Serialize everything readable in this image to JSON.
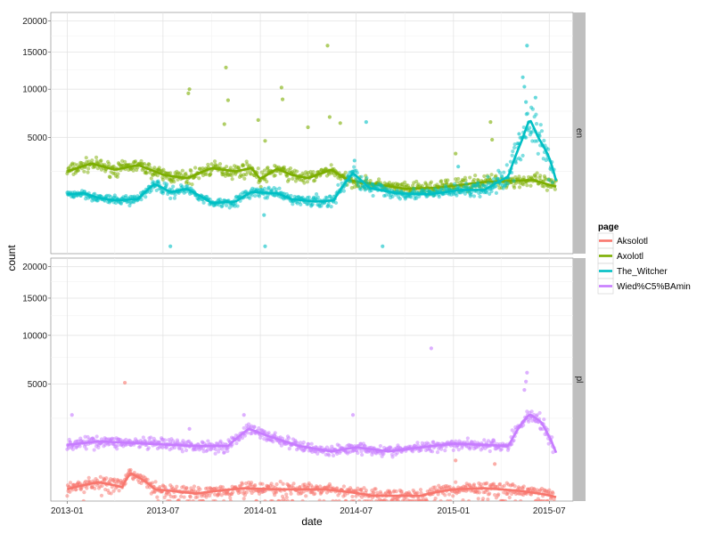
{
  "chart_data": {
    "type": "scatter",
    "title": "",
    "xlabel": "date",
    "ylabel": "count",
    "x_ticks": [
      "2013-01",
      "2013-07",
      "2014-01",
      "2014-07",
      "2015-01",
      "2015-07"
    ],
    "x_range": [
      "2012-12-01",
      "2015-08-15"
    ],
    "y_ticks": [
      5000,
      10000,
      15000,
      20000
    ],
    "y_tick_labels": [
      "5000",
      "10000",
      "15000",
      "20000"
    ],
    "y_scale": "sqrt",
    "ylim": [
      0,
      21500
    ],
    "grid": true,
    "legend": {
      "title": "page",
      "placement": "right",
      "entries": [
        {
          "name": "Aksolotl",
          "color": "#F8766D"
        },
        {
          "name": "Axolotl",
          "color": "#7CAE00"
        },
        {
          "name": "The_Witcher",
          "color": "#00BFC4"
        },
        {
          "name": "Wied%C5%BAmin",
          "color": "#C77CFF"
        }
      ]
    },
    "facets": [
      {
        "label": "en",
        "series": [
          {
            "name": "Axolotl",
            "color": "#7CAE00",
            "trend": [
              [
                "2013-01-01",
                2500
              ],
              [
                "2013-02-15",
                3000
              ],
              [
                "2013-04-01",
                2600
              ],
              [
                "2013-05-15",
                2900
              ],
              [
                "2013-07-01",
                2300
              ],
              [
                "2013-08-15",
                2100
              ],
              [
                "2013-10-01",
                2700
              ],
              [
                "2013-11-15",
                2500
              ],
              [
                "2013-12-15",
                2700
              ],
              [
                "2014-01-01",
                2050
              ],
              [
                "2014-02-01",
                2650
              ],
              [
                "2014-03-01",
                2300
              ],
              [
                "2014-04-01",
                2100
              ],
              [
                "2014-05-15",
                2600
              ],
              [
                "2014-06-15",
                2000
              ],
              [
                "2014-08-01",
                1800
              ],
              [
                "2014-10-01",
                1550
              ],
              [
                "2014-12-01",
                1600
              ],
              [
                "2015-01-15",
                1750
              ],
              [
                "2015-03-01",
                1900
              ],
              [
                "2015-04-15",
                1950
              ],
              [
                "2015-06-01",
                2000
              ],
              [
                "2015-06-25",
                1800
              ],
              [
                "2015-07-15",
                1650
              ]
            ],
            "baseline_points": [
              [
                "2013-01-01",
                2500,
                2000,
                3500
              ],
              [
                "2013-04-01",
                2600,
                2000,
                3300
              ],
              [
                "2013-07-01",
                2300,
                1700,
                3000
              ],
              [
                "2013-10-01",
                2700,
                1900,
                3300
              ],
              [
                "2014-01-01",
                2050,
                1700,
                3100
              ],
              [
                "2014-04-01",
                2100,
                1600,
                2800
              ],
              [
                "2014-07-01",
                1800,
                1400,
                2400
              ],
              [
                "2014-10-01",
                1550,
                1200,
                2100
              ],
              [
                "2015-01-01",
                1700,
                1200,
                2500
              ],
              [
                "2015-04-01",
                1950,
                1500,
                2600
              ],
              [
                "2015-07-15",
                1650,
                1000,
                2300
              ]
            ],
            "outliers": [
              [
                "2013-08-20",
                10000
              ],
              [
                "2013-08-18",
                9500
              ],
              [
                "2013-10-28",
                12800
              ],
              [
                "2013-11-01",
                8700
              ],
              [
                "2013-10-25",
                6200
              ],
              [
                "2013-12-28",
                6600
              ],
              [
                "2014-01-10",
                4700
              ],
              [
                "2014-02-10",
                10200
              ],
              [
                "2014-02-12",
                8800
              ],
              [
                "2014-04-01",
                5900
              ],
              [
                "2014-05-08",
                16000
              ],
              [
                "2014-05-12",
                6900
              ],
              [
                "2014-06-01",
                6300
              ],
              [
                "2015-03-12",
                6400
              ],
              [
                "2015-03-15",
                4800
              ],
              [
                "2015-01-05",
                3700
              ]
            ]
          },
          {
            "name": "The_Witcher",
            "color": "#00BFC4",
            "trend": [
              [
                "2013-01-01",
                1300
              ],
              [
                "2013-02-01",
                1350
              ],
              [
                "2013-03-01",
                1150
              ],
              [
                "2013-04-01",
                1050
              ],
              [
                "2013-05-15",
                1100
              ],
              [
                "2013-06-15",
                1800
              ],
              [
                "2013-07-15",
                1400
              ],
              [
                "2013-08-15",
                1550
              ],
              [
                "2013-10-01",
                950
              ],
              [
                "2013-11-15",
                1000
              ],
              [
                "2013-12-15",
                1400
              ],
              [
                "2014-02-01",
                1350
              ],
              [
                "2014-03-01",
                1100
              ],
              [
                "2014-04-15",
                1000
              ],
              [
                "2014-05-20",
                1050
              ],
              [
                "2014-06-25",
                2400
              ],
              [
                "2014-07-25",
                1600
              ],
              [
                "2014-09-15",
                1350
              ],
              [
                "2014-11-15",
                1300
              ],
              [
                "2015-01-15",
                1500
              ],
              [
                "2015-03-01",
                1500
              ],
              [
                "2015-04-15",
                2200
              ],
              [
                "2015-05-10",
                4700
              ],
              [
                "2015-05-25",
                6700
              ],
              [
                "2015-06-10",
                5000
              ],
              [
                "2015-06-30",
                3500
              ],
              [
                "2015-07-15",
                1850
              ]
            ],
            "baseline_points": [
              [
                "2013-01-01",
                1300,
                1000,
                1700
              ],
              [
                "2013-04-01",
                1050,
                850,
                1350
              ],
              [
                "2013-07-01",
                1500,
                1000,
                2000
              ],
              [
                "2013-10-01",
                950,
                750,
                1250
              ],
              [
                "2014-01-01",
                1400,
                1050,
                1800
              ],
              [
                "2014-04-01",
                1050,
                800,
                1400
              ],
              [
                "2014-07-01",
                2000,
                1200,
                2800
              ],
              [
                "2014-10-01",
                1350,
                1000,
                1700
              ],
              [
                "2015-01-01",
                1500,
                1100,
                2000
              ],
              [
                "2015-04-01",
                2000,
                1400,
                3000
              ],
              [
                "2015-06-01",
                5800,
                3500,
                11500
              ],
              [
                "2015-07-10",
                2600,
                1700,
                4000
              ]
            ],
            "outliers": [
              [
                "2013-07-15",
                20
              ],
              [
                "2014-01-10",
                20
              ],
              [
                "2014-01-08",
                550
              ],
              [
                "2014-08-20",
                20
              ],
              [
                "2015-05-20",
                16000
              ],
              [
                "2015-05-12",
                11500
              ],
              [
                "2015-05-15",
                10300
              ],
              [
                "2015-05-18",
                8500
              ],
              [
                "2014-06-28",
                3200
              ],
              [
                "2014-07-20",
                6400
              ],
              [
                "2015-01-10",
                2800
              ],
              [
                "2015-05-05",
                5300
              ],
              [
                "2015-06-05",
                9000
              ]
            ]
          }
        ]
      },
      {
        "label": "pl",
        "series": [
          {
            "name": "Wied%C5%BAmin",
            "color": "#C77CFF",
            "trend": [
              [
                "2013-01-01",
                1150
              ],
              [
                "2013-03-01",
                1300
              ],
              [
                "2013-06-01",
                1200
              ],
              [
                "2013-09-01",
                1100
              ],
              [
                "2013-11-01",
                1100
              ],
              [
                "2013-12-10",
                1900
              ],
              [
                "2014-01-20",
                1500
              ],
              [
                "2014-03-15",
                1100
              ],
              [
                "2014-05-15",
                900
              ],
              [
                "2014-07-01",
                1050
              ],
              [
                "2014-09-01",
                900
              ],
              [
                "2014-11-01",
                1050
              ],
              [
                "2015-01-01",
                1200
              ],
              [
                "2015-03-01",
                1150
              ],
              [
                "2015-04-15",
                1100
              ],
              [
                "2015-05-10",
                2200
              ],
              [
                "2015-05-25",
                2750
              ],
              [
                "2015-06-15",
                2300
              ],
              [
                "2015-07-15",
                800
              ]
            ],
            "baseline_points": [
              [
                "2013-01-01",
                1150,
                800,
                1600
              ],
              [
                "2013-04-01",
                1250,
                900,
                1700
              ],
              [
                "2013-07-01",
                1150,
                800,
                1600
              ],
              [
                "2013-10-01",
                1100,
                800,
                1500
              ],
              [
                "2014-01-01",
                1600,
                1200,
                2200
              ],
              [
                "2014-04-01",
                1000,
                750,
                1400
              ],
              [
                "2014-07-01",
                1050,
                750,
                1400
              ],
              [
                "2014-10-01",
                950,
                700,
                1300
              ],
              [
                "2015-01-01",
                1200,
                850,
                1600
              ],
              [
                "2015-04-01",
                1100,
                800,
                1500
              ],
              [
                "2015-06-01",
                2400,
                1500,
                3300
              ],
              [
                "2015-07-10",
                1300,
                800,
                1800
              ]
            ],
            "outliers": [
              [
                "2013-01-10",
                2700
              ],
              [
                "2013-08-20",
                1900
              ],
              [
                "2013-12-01",
                2700
              ],
              [
                "2014-06-25",
                2700
              ],
              [
                "2014-11-20",
                8500
              ],
              [
                "2015-05-20",
                6000
              ],
              [
                "2015-05-18",
                5200
              ],
              [
                "2015-05-15",
                4500
              ],
              [
                "2013-07-10",
                40
              ],
              [
                "2014-01-05",
                40
              ]
            ]
          },
          {
            "name": "Aksolotl",
            "color": "#F8766D",
            "trend": [
              [
                "2013-01-01",
                50
              ],
              [
                "2013-03-01",
                130
              ],
              [
                "2013-04-15",
                70
              ],
              [
                "2013-05-01",
                280
              ],
              [
                "2013-06-15",
                50
              ],
              [
                "2013-09-01",
                20
              ],
              [
                "2013-12-01",
                60
              ],
              [
                "2014-02-01",
                50
              ],
              [
                "2014-05-01",
                50
              ],
              [
                "2014-08-01",
                10
              ],
              [
                "2014-11-01",
                10
              ],
              [
                "2015-01-01",
                50
              ],
              [
                "2015-03-01",
                60
              ],
              [
                "2015-05-01",
                40
              ],
              [
                "2015-07-15",
                5
              ]
            ],
            "baseline_points": [
              [
                "2013-01-01",
                50,
                5,
                250
              ],
              [
                "2013-04-01",
                100,
                10,
                400
              ],
              [
                "2013-07-01",
                40,
                5,
                200
              ],
              [
                "2013-10-01",
                30,
                5,
                180
              ],
              [
                "2014-01-01",
                60,
                5,
                300
              ],
              [
                "2014-04-01",
                50,
                5,
                200
              ],
              [
                "2014-07-01",
                20,
                0,
                150
              ],
              [
                "2014-10-01",
                10,
                0,
                100
              ],
              [
                "2015-01-01",
                50,
                0,
                200
              ],
              [
                "2015-04-01",
                60,
                0,
                250
              ],
              [
                "2015-07-10",
                10,
                0,
                120
              ]
            ],
            "outliers": [
              [
                "2013-04-20",
                5100
              ],
              [
                "2015-01-05",
                600
              ],
              [
                "2015-03-20",
                500
              ]
            ]
          }
        ]
      }
    ]
  }
}
